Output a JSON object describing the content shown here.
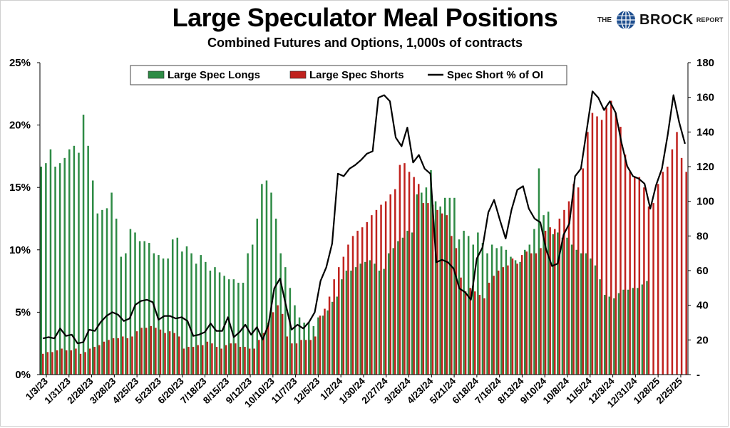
{
  "title": "Large Speculator Meal Positions",
  "subtitle": "Combined Futures and Options, 1,000s of contracts",
  "brand": {
    "the": "THE",
    "name": "BROCK",
    "report": "REPORT",
    "logo_icon": "globe-icon"
  },
  "colors": {
    "longs": "#2e8b45",
    "shorts": "#c0221e",
    "pct": "#000000"
  },
  "chart_data": {
    "type": "bar",
    "legend_position": "top-center",
    "grid": false,
    "y_left": {
      "ticks": [
        "0%",
        "5%",
        "10%",
        "15%",
        "20%",
        "25%"
      ],
      "range": [
        0,
        25
      ]
    },
    "y_right": {
      "ticks": [
        "-",
        "20",
        "40",
        "60",
        "80",
        "100",
        "120",
        "140",
        "160",
        "180"
      ],
      "range": [
        0,
        180
      ]
    },
    "x_tick_labels": [
      "1/3/23",
      "1/31/23",
      "2/28/23",
      "3/28/23",
      "4/25/23",
      "5/23/23",
      "6/20/23",
      "7/18/23",
      "8/15/23",
      "9/12/23",
      "10/10/23",
      "11/7/23",
      "12/5/23",
      "1/2/24",
      "1/30/24",
      "2/27/24",
      "3/26/24",
      "4/23/24",
      "5/21/24",
      "6/18/24",
      "7/16/24",
      "8/13/24",
      "9/10/24",
      "10/8/24",
      "11/5/24",
      "12/3/24",
      "12/31/24",
      "1/28/25",
      "2/25/25"
    ],
    "series": [
      {
        "name": "Large Spec Longs",
        "axis": "right",
        "values": [
          120,
          122,
          130,
          120,
          122,
          125,
          130,
          132,
          128,
          150,
          132,
          112,
          93,
          95,
          96,
          105,
          90,
          68,
          70,
          84,
          82,
          77,
          77,
          76,
          70,
          69,
          67,
          67,
          78,
          79,
          71,
          74,
          70,
          64,
          69,
          65,
          60,
          62,
          59,
          57,
          55,
          55,
          53,
          53,
          70,
          75,
          90,
          110,
          112,
          105,
          90,
          70,
          62,
          50,
          40,
          33,
          30,
          30,
          28,
          33,
          34,
          37,
          42,
          45,
          55,
          60,
          60,
          62,
          64,
          65,
          66,
          64,
          60,
          61,
          70,
          73,
          77,
          79,
          83,
          82,
          104,
          105,
          108,
          118,
          100,
          97,
          102,
          102,
          102,
          78,
          83,
          80,
          75,
          82,
          76,
          70,
          75,
          73,
          74,
          72,
          68,
          66,
          65,
          72,
          75,
          84,
          119,
          92,
          94,
          81,
          82,
          79,
          79,
          75,
          72,
          70,
          70,
          67,
          63,
          55,
          46,
          45,
          44,
          47,
          49,
          49,
          50,
          50,
          52,
          54
        ]
      },
      {
        "name": "Large Spec Shorts",
        "axis": "right",
        "values": [
          12,
          13,
          13,
          14,
          15,
          14,
          14,
          15,
          12,
          13,
          15,
          16,
          17,
          19,
          20,
          21,
          21,
          22,
          21,
          22,
          25,
          27,
          27,
          28,
          27,
          26,
          24,
          25,
          24,
          22,
          15,
          16,
          16,
          17,
          17,
          19,
          18,
          16,
          15,
          17,
          18,
          18,
          16,
          16,
          15,
          15,
          20,
          24,
          30,
          36,
          40,
          35,
          22,
          18,
          18,
          20,
          20,
          20,
          22,
          34,
          38,
          45,
          55,
          62,
          68,
          75,
          80,
          83,
          85,
          88,
          92,
          95,
          98,
          100,
          104,
          107,
          121,
          122,
          117,
          114,
          110,
          99,
          99,
          98,
          95,
          93,
          92,
          80,
          73,
          56,
          48,
          50,
          48,
          46,
          44,
          53,
          57,
          60,
          62,
          63,
          67,
          64,
          69,
          71,
          70,
          70,
          73,
          83,
          85,
          84,
          90,
          95,
          100,
          110,
          108,
          119,
          140,
          151,
          149,
          147,
          154,
          158,
          151,
          143,
          127,
          117,
          114,
          114,
          108,
          97,
          99,
          110,
          117,
          120,
          130,
          140,
          125,
          117
        ]
      },
      {
        "name": "Spec Short % of OI",
        "axis": "left",
        "values": [
          2.9,
          3.0,
          2.9,
          3.7,
          3.1,
          3.2,
          2.5,
          2.6,
          3.6,
          3.5,
          4.2,
          4.7,
          5.0,
          4.8,
          4.3,
          4.5,
          5.6,
          5.9,
          6.0,
          5.8,
          4.4,
          4.7,
          4.7,
          4.5,
          4.6,
          4.3,
          3.1,
          3.2,
          3.4,
          4.1,
          3.5,
          3.5,
          4.6,
          3.0,
          3.4,
          4.0,
          3.2,
          3.8,
          2.8,
          4.0,
          6.9,
          7.7,
          5.6,
          3.6,
          4.0,
          3.7,
          4.2,
          5.0,
          7.5,
          8.6,
          10.5,
          16.1,
          15.9,
          16.5,
          16.8,
          17.2,
          17.7,
          17.9,
          22.2,
          22.4,
          21.9,
          19.0,
          18.3,
          19.8,
          17.0,
          17.6,
          16.5,
          16.1,
          9.0,
          9.2,
          9.0,
          8.5,
          6.9,
          6.6,
          6.0,
          9.3,
          10.2,
          13.0,
          14.0,
          12.4,
          10.9,
          13.2,
          14.8,
          15.1,
          13.3,
          12.5,
          12.2,
          10.0,
          8.7,
          8.9,
          11.2,
          12.1,
          15.9,
          16.5,
          19.6,
          22.7,
          22.2,
          21.2,
          21.9,
          21.0,
          18.6,
          16.7,
          15.9,
          15.7,
          15.3,
          13.3,
          15.2,
          16.5,
          19.2,
          22.4,
          20.2,
          18.5
        ],
        "note_x": "pct series spans the same weekly timeline"
      }
    ]
  }
}
